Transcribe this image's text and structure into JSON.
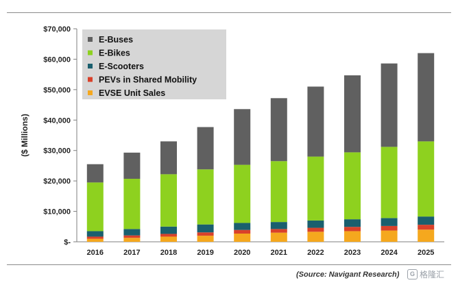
{
  "chart_data": {
    "type": "bar",
    "stacked": true,
    "categories": [
      "2016",
      "2017",
      "2018",
      "2019",
      "2020",
      "2021",
      "2022",
      "2023",
      "2024",
      "2025"
    ],
    "ylabel": "($ Millions)",
    "ylim": [
      0,
      70000
    ],
    "yticks": [
      0,
      10000,
      20000,
      30000,
      40000,
      50000,
      60000,
      70000
    ],
    "ytick_labels": [
      "$-",
      "$10,000",
      "$20,000",
      "$30,000",
      "$40,000",
      "$50,000",
      "$60,000",
      "$70,000"
    ],
    "legend_position": "top-left",
    "series": [
      {
        "name": "EVSE Unit Sales",
        "color": "#f5a81e",
        "values": [
          1000,
          1300,
          1700,
          2000,
          2700,
          3000,
          3300,
          3500,
          3700,
          4000
        ]
      },
      {
        "name": "PEVs in Shared Mobility",
        "color": "#d9412a",
        "values": [
          700,
          800,
          900,
          1100,
          1200,
          1200,
          1300,
          1400,
          1500,
          1600
        ]
      },
      {
        "name": "E-Scooters",
        "color": "#1a5f6e",
        "values": [
          1800,
          2100,
          2400,
          2600,
          2300,
          2300,
          2400,
          2500,
          2600,
          2700
        ]
      },
      {
        "name": "E-Bikes",
        "color": "#8ed11f",
        "values": [
          16000,
          16500,
          17200,
          18100,
          19100,
          20000,
          21000,
          22000,
          23400,
          24700
        ]
      },
      {
        "name": "E-Buses",
        "color": "#606060",
        "values": [
          6000,
          8600,
          10800,
          13900,
          18300,
          20700,
          23000,
          25300,
          27400,
          29000
        ]
      }
    ],
    "legend_order": [
      "E-Buses",
      "E-Bikes",
      "E-Scooters",
      "PEVs in Shared Mobility",
      "EVSE Unit Sales"
    ]
  },
  "source_text": "(Source: Navigant Research)",
  "watermark_text": "格隆汇",
  "watermark_icon": "G"
}
